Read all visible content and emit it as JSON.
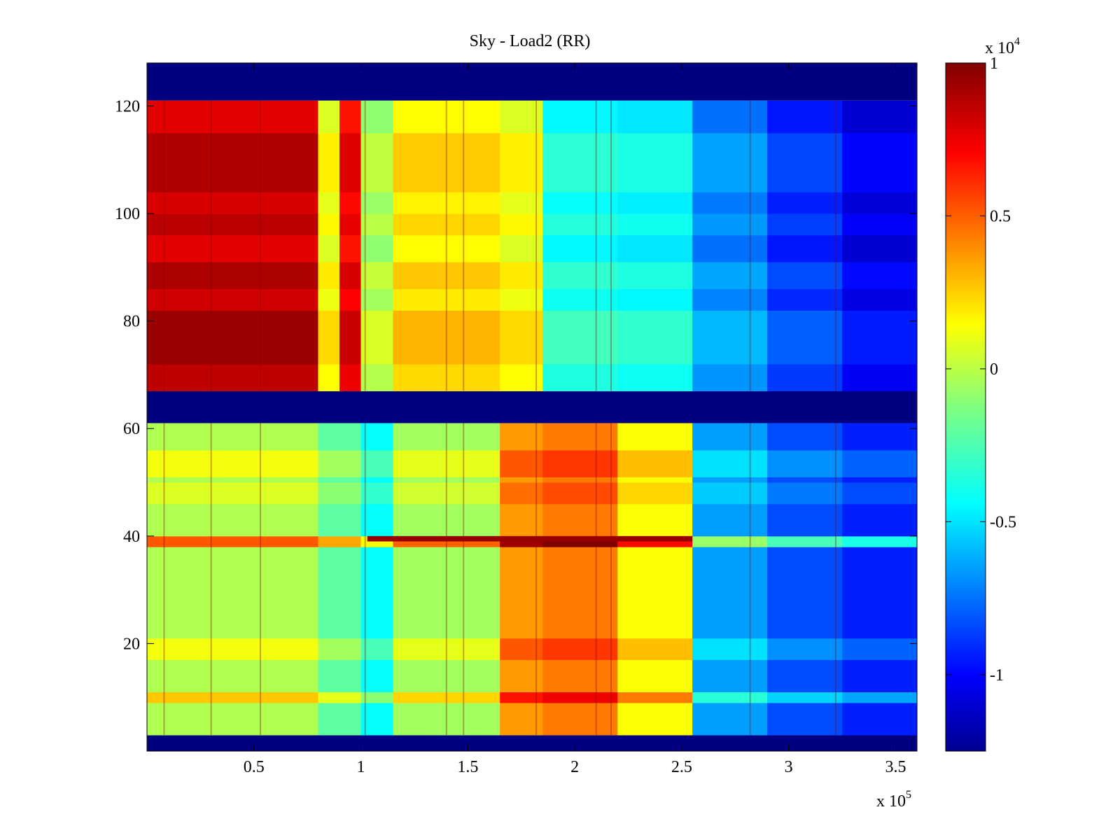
{
  "chart_data": {
    "type": "heatmap",
    "title": "Sky - Load2 (RR)",
    "xlabel": "",
    "ylabel": "",
    "x_exponent_label": "x 10",
    "x_exponent_power": "5",
    "xlim": [
      0,
      3.6
    ],
    "ylim": [
      0,
      128
    ],
    "xticks": [
      0.5,
      1,
      1.5,
      2,
      2.5,
      3,
      3.5
    ],
    "xtick_labels": [
      "0.5",
      "1",
      "1.5",
      "2",
      "2.5",
      "3",
      "3.5"
    ],
    "yticks": [
      20,
      40,
      60,
      80,
      100,
      120
    ],
    "ytick_labels": [
      "20",
      "40",
      "60",
      "80",
      "100",
      "120"
    ],
    "colorbar": {
      "colormap": "jet",
      "exponent_label": "x 10",
      "exponent_power": "4",
      "clim": [
        -1.25,
        1.0
      ],
      "ticks": [
        1,
        0.5,
        0,
        -0.5,
        -1
      ],
      "tick_labels": [
        "1",
        "0.5",
        "0",
        "-0.5",
        "-1"
      ]
    },
    "nodata_value": -1.25,
    "nodata_rows": [
      [
        0,
        3
      ],
      [
        61,
        67
      ],
      [
        121,
        128
      ]
    ],
    "upper_band": {
      "rows": [
        67,
        121
      ],
      "columns": [
        {
          "x": [
            0.0,
            0.8
          ],
          "value": 0.82
        },
        {
          "x": [
            0.8,
            0.9
          ],
          "value": 0.12
        },
        {
          "x": [
            0.9,
            1.0
          ],
          "value": 0.72
        },
        {
          "x": [
            1.0,
            1.15
          ],
          "value": -0.05
        },
        {
          "x": [
            1.15,
            1.65
          ],
          "value": 0.2
        },
        {
          "x": [
            1.65,
            1.85
          ],
          "value": 0.12
        },
        {
          "x": [
            1.85,
            2.2
          ],
          "value": -0.38
        },
        {
          "x": [
            2.2,
            2.55
          ],
          "value": -0.42
        },
        {
          "x": [
            2.55,
            2.9
          ],
          "value": -0.68
        },
        {
          "x": [
            2.9,
            3.25
          ],
          "value": -0.88
        },
        {
          "x": [
            3.25,
            3.6
          ],
          "value": -1.03
        }
      ],
      "row_modulation": [
        {
          "y": [
            67,
            72
          ],
          "delta": 0.04
        },
        {
          "y": [
            72,
            82
          ],
          "delta": 0.12
        },
        {
          "y": [
            82,
            86
          ],
          "delta": 0.0
        },
        {
          "y": [
            86,
            91
          ],
          "delta": 0.08
        },
        {
          "y": [
            91,
            96
          ],
          "delta": -0.04
        },
        {
          "y": [
            96,
            100
          ],
          "delta": 0.05
        },
        {
          "y": [
            100,
            104
          ],
          "delta": -0.02
        },
        {
          "y": [
            104,
            115
          ],
          "delta": 0.07
        },
        {
          "y": [
            115,
            121
          ],
          "delta": -0.04
        }
      ]
    },
    "lower_band": {
      "rows": [
        3,
        61
      ],
      "columns": [
        {
          "x": [
            0.0,
            0.8
          ],
          "value": -0.02
        },
        {
          "x": [
            0.8,
            1.0
          ],
          "value": -0.2
        },
        {
          "x": [
            1.0,
            1.15
          ],
          "value": -0.4
        },
        {
          "x": [
            1.15,
            1.65
          ],
          "value": -0.05
        },
        {
          "x": [
            1.65,
            1.85
          ],
          "value": 0.38
        },
        {
          "x": [
            1.85,
            2.2
          ],
          "value": 0.45
        },
        {
          "x": [
            2.2,
            2.55
          ],
          "value": 0.15
        },
        {
          "x": [
            2.55,
            2.9
          ],
          "value": -0.62
        },
        {
          "x": [
            2.9,
            3.25
          ],
          "value": -0.8
        },
        {
          "x": [
            3.25,
            3.6
          ],
          "value": -0.9
        }
      ],
      "row_modulation": [
        {
          "y": [
            3,
            8
          ],
          "delta": 0.0
        },
        {
          "y": [
            9,
            11
          ],
          "delta": 0.3
        },
        {
          "y": [
            17,
            21
          ],
          "delta": 0.15
        },
        {
          "y": [
            38,
            40
          ],
          "delta": 0.55
        },
        {
          "y": [
            46,
            50
          ],
          "delta": 0.1
        },
        {
          "y": [
            51,
            56
          ],
          "delta": 0.15
        }
      ]
    },
    "vertical_streaks": [
      0.08,
      0.3,
      0.53,
      1.02,
      1.4,
      1.48,
      1.82,
      2.1,
      2.17,
      2.82,
      3.22
    ],
    "horizontal_feature": {
      "y": 39,
      "x": [
        1.03,
        2.55
      ],
      "value": 0.95
    }
  }
}
